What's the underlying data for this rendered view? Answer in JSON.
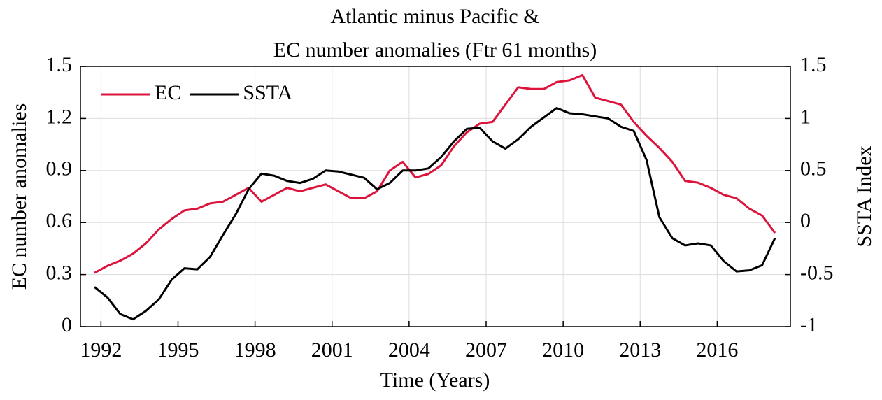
{
  "chart_data": {
    "type": "line",
    "title": [
      "Atlantic minus Pacific &",
      "EC number anomalies (Ftr 61 months)"
    ],
    "x_label": "Time (Years)",
    "y_label": "EC number anomalies",
    "y2_label": "SSTA Index",
    "x": [
      1991.75,
      1992.25,
      1992.75,
      1993.25,
      1993.75,
      1994.25,
      1994.75,
      1995.25,
      1995.75,
      1996.25,
      1996.75,
      1997.25,
      1997.75,
      1998.25,
      1998.75,
      1999.25,
      1999.75,
      2000.25,
      2000.75,
      2001.25,
      2001.75,
      2002.25,
      2002.75,
      2003.25,
      2003.75,
      2004.25,
      2004.75,
      2005.25,
      2005.75,
      2006.25,
      2006.75,
      2007.25,
      2007.75,
      2008.25,
      2008.75,
      2009.25,
      2009.75,
      2010.25,
      2010.75,
      2011.25,
      2011.75,
      2012.25,
      2012.75,
      2013.25,
      2013.75,
      2014.25,
      2014.75,
      2015.25,
      2015.75,
      2016.25,
      2016.75,
      2017.25,
      2017.75,
      2018.25
    ],
    "series": [
      {
        "name": "EC",
        "color": "#dc143c",
        "values": [
          0.31,
          0.35,
          0.38,
          0.42,
          0.48,
          0.56,
          0.62,
          0.67,
          0.68,
          0.71,
          0.72,
          0.76,
          0.8,
          0.72,
          0.76,
          0.8,
          0.78,
          0.8,
          0.82,
          0.78,
          0.74,
          0.74,
          0.78,
          0.9,
          0.95,
          0.86,
          0.88,
          0.93,
          1.04,
          1.12,
          1.17,
          1.18,
          1.28,
          1.38,
          1.37,
          1.37,
          1.41,
          1.42,
          1.45,
          1.32,
          1.3,
          1.28,
          1.18,
          1.1,
          1.03,
          0.95,
          0.84,
          0.83,
          0.8,
          0.76,
          0.74,
          0.68,
          0.64,
          0.54
        ]
      },
      {
        "name": "SSTA",
        "color": "#000000",
        "axis": "y2",
        "values": [
          -0.62,
          -0.72,
          -0.88,
          -0.93,
          -0.85,
          -0.74,
          -0.55,
          -0.44,
          -0.45,
          -0.33,
          -0.12,
          0.08,
          0.32,
          0.47,
          0.45,
          0.4,
          0.38,
          0.42,
          0.5,
          0.49,
          0.46,
          0.43,
          0.32,
          0.38,
          0.5,
          0.5,
          0.52,
          0.63,
          0.78,
          0.9,
          0.91,
          0.78,
          0.71,
          0.8,
          0.92,
          1.01,
          1.1,
          1.05,
          1.04,
          1.02,
          1.0,
          0.92,
          0.88,
          0.6,
          0.05,
          -0.15,
          -0.22,
          -0.2,
          -0.22,
          -0.37,
          -0.47,
          -0.46,
          -0.41,
          -0.15
        ]
      }
    ],
    "xlim": [
      1991.2,
      2018.85
    ],
    "xticks": [
      1992,
      1995,
      1998,
      2001,
      2004,
      2007,
      2010,
      2013,
      2016
    ],
    "ylim": [
      0,
      1.5
    ],
    "yticks": [
      0,
      0.3,
      0.6,
      0.9,
      1.2,
      1.5
    ],
    "y2lim": [
      -1,
      1.5
    ],
    "y2ticks": [
      -1,
      -0.5,
      0,
      0.5,
      1,
      1.5
    ],
    "grid": true,
    "legend": "top-left"
  }
}
